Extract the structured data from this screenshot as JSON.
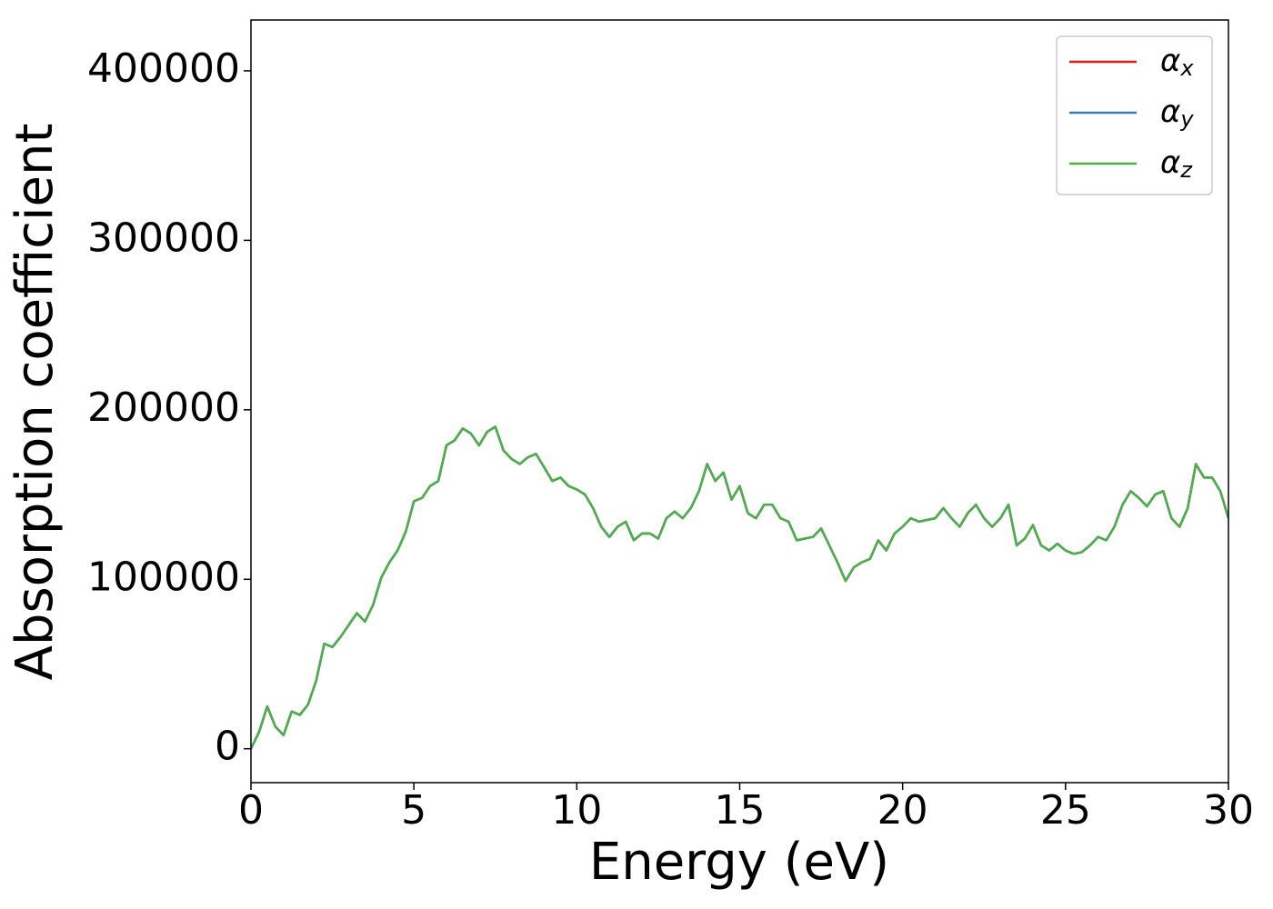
{
  "chart_data": {
    "type": "line",
    "xlabel": "Energy (eV)",
    "ylabel": "Absorption coefficient",
    "x": [
      0,
      0.25,
      0.5,
      0.75,
      1,
      1.25,
      1.5,
      1.75,
      2,
      2.25,
      2.5,
      2.75,
      3,
      3.25,
      3.5,
      3.75,
      4,
      4.25,
      4.5,
      4.75,
      5,
      5.25,
      5.5,
      5.75,
      6,
      6.25,
      6.5,
      6.75,
      7,
      7.25,
      7.5,
      7.75,
      8,
      8.25,
      8.5,
      8.75,
      9,
      9.25,
      9.5,
      9.75,
      10,
      10.25,
      10.5,
      10.75,
      11,
      11.25,
      11.5,
      11.75,
      12,
      12.25,
      12.5,
      12.75,
      13,
      13.25,
      13.5,
      13.75,
      14,
      14.25,
      14.5,
      14.75,
      15,
      15.25,
      15.5,
      15.75,
      16,
      16.25,
      16.5,
      16.75,
      17,
      17.25,
      17.5,
      17.75,
      18,
      18.25,
      18.5,
      18.75,
      19,
      19.25,
      19.5,
      19.75,
      20,
      20.25,
      20.5,
      20.75,
      21,
      21.25,
      21.5,
      21.75,
      22,
      22.25,
      22.5,
      22.75,
      23,
      23.25,
      23.5,
      23.75,
      24,
      24.25,
      24.5,
      24.75,
      25,
      25.25,
      25.5,
      25.75,
      26,
      26.25,
      26.5,
      26.75,
      27,
      27.25,
      27.5,
      27.75,
      28,
      28.25,
      28.5,
      28.75,
      29,
      29.25,
      29.5,
      29.75,
      30
    ],
    "series": [
      {
        "name": "αx",
        "color": "#e41a1c",
        "values": [
          0,
          10000,
          25000,
          13000,
          8000,
          22000,
          20000,
          26000,
          40000,
          62000,
          60000,
          66000,
          73000,
          80000,
          75000,
          85000,
          101000,
          110000,
          117000,
          128000,
          146000,
          148000,
          155000,
          158000,
          179000,
          182000,
          189000,
          186000,
          179000,
          187000,
          190000,
          176000,
          171000,
          168000,
          172000,
          174000,
          166000,
          158000,
          160000,
          155000,
          153000,
          150000,
          142000,
          131000,
          125000,
          131000,
          134000,
          123000,
          127000,
          127000,
          124000,
          136000,
          140000,
          136000,
          142000,
          152000,
          168000,
          158000,
          163000,
          147000,
          155000,
          139000,
          136000,
          144000,
          144000,
          136000,
          134000,
          123000,
          124000,
          125000,
          130000,
          120000,
          110000,
          99000,
          107000,
          110000,
          112000,
          123000,
          117000,
          127000,
          131000,
          136000,
          134000,
          135000,
          136000,
          142000,
          136000,
          131000,
          139000,
          144000,
          136000,
          131000,
          136000,
          144000,
          120000,
          124000,
          132000,
          120000,
          117000,
          121000,
          117000,
          115000,
          116000,
          120000,
          125000,
          123000,
          131000,
          144000,
          152000,
          148000,
          143000,
          150000,
          152000,
          136000,
          131000,
          142000,
          168000,
          160000,
          160000,
          152000,
          136000
        ]
      },
      {
        "name": "αy",
        "color": "#377eb8",
        "values": [
          0,
          10000,
          25000,
          13000,
          8000,
          22000,
          20000,
          26000,
          40000,
          62000,
          60000,
          66000,
          73000,
          80000,
          75000,
          85000,
          101000,
          110000,
          117000,
          128000,
          146000,
          148000,
          155000,
          158000,
          179000,
          182000,
          189000,
          186000,
          179000,
          187000,
          190000,
          176000,
          171000,
          168000,
          172000,
          174000,
          166000,
          158000,
          160000,
          155000,
          153000,
          150000,
          142000,
          131000,
          125000,
          131000,
          134000,
          123000,
          127000,
          127000,
          124000,
          136000,
          140000,
          136000,
          142000,
          152000,
          168000,
          158000,
          163000,
          147000,
          155000,
          139000,
          136000,
          144000,
          144000,
          136000,
          134000,
          123000,
          124000,
          125000,
          130000,
          120000,
          110000,
          99000,
          107000,
          110000,
          112000,
          123000,
          117000,
          127000,
          131000,
          136000,
          134000,
          135000,
          136000,
          142000,
          136000,
          131000,
          139000,
          144000,
          136000,
          131000,
          136000,
          144000,
          120000,
          124000,
          132000,
          120000,
          117000,
          121000,
          117000,
          115000,
          116000,
          120000,
          125000,
          123000,
          131000,
          144000,
          152000,
          148000,
          143000,
          150000,
          152000,
          136000,
          131000,
          142000,
          168000,
          160000,
          160000,
          152000,
          136000
        ]
      },
      {
        "name": "αz",
        "color": "#4daf4a",
        "values": [
          0,
          10000,
          25000,
          13000,
          8000,
          22000,
          20000,
          26000,
          40000,
          62000,
          60000,
          66000,
          73000,
          80000,
          75000,
          85000,
          101000,
          110000,
          117000,
          128000,
          146000,
          148000,
          155000,
          158000,
          179000,
          182000,
          189000,
          186000,
          179000,
          187000,
          190000,
          176000,
          171000,
          168000,
          172000,
          174000,
          166000,
          158000,
          160000,
          155000,
          153000,
          150000,
          142000,
          131000,
          125000,
          131000,
          134000,
          123000,
          127000,
          127000,
          124000,
          136000,
          140000,
          136000,
          142000,
          152000,
          168000,
          158000,
          163000,
          147000,
          155000,
          139000,
          136000,
          144000,
          144000,
          136000,
          134000,
          123000,
          124000,
          125000,
          130000,
          120000,
          110000,
          99000,
          107000,
          110000,
          112000,
          123000,
          117000,
          127000,
          131000,
          136000,
          134000,
          135000,
          136000,
          142000,
          136000,
          131000,
          139000,
          144000,
          136000,
          131000,
          136000,
          144000,
          120000,
          124000,
          132000,
          120000,
          117000,
          121000,
          117000,
          115000,
          116000,
          120000,
          125000,
          123000,
          131000,
          144000,
          152000,
          148000,
          143000,
          150000,
          152000,
          136000,
          131000,
          142000,
          168000,
          160000,
          160000,
          152000,
          136000
        ]
      }
    ],
    "xlim": [
      0,
      30
    ],
    "xticks": [
      0,
      5,
      10,
      15,
      20,
      25,
      30
    ],
    "ylim": [
      -20000,
      430000
    ],
    "yticks": [
      0,
      100000,
      200000,
      300000,
      400000
    ],
    "legend": "upper right"
  }
}
